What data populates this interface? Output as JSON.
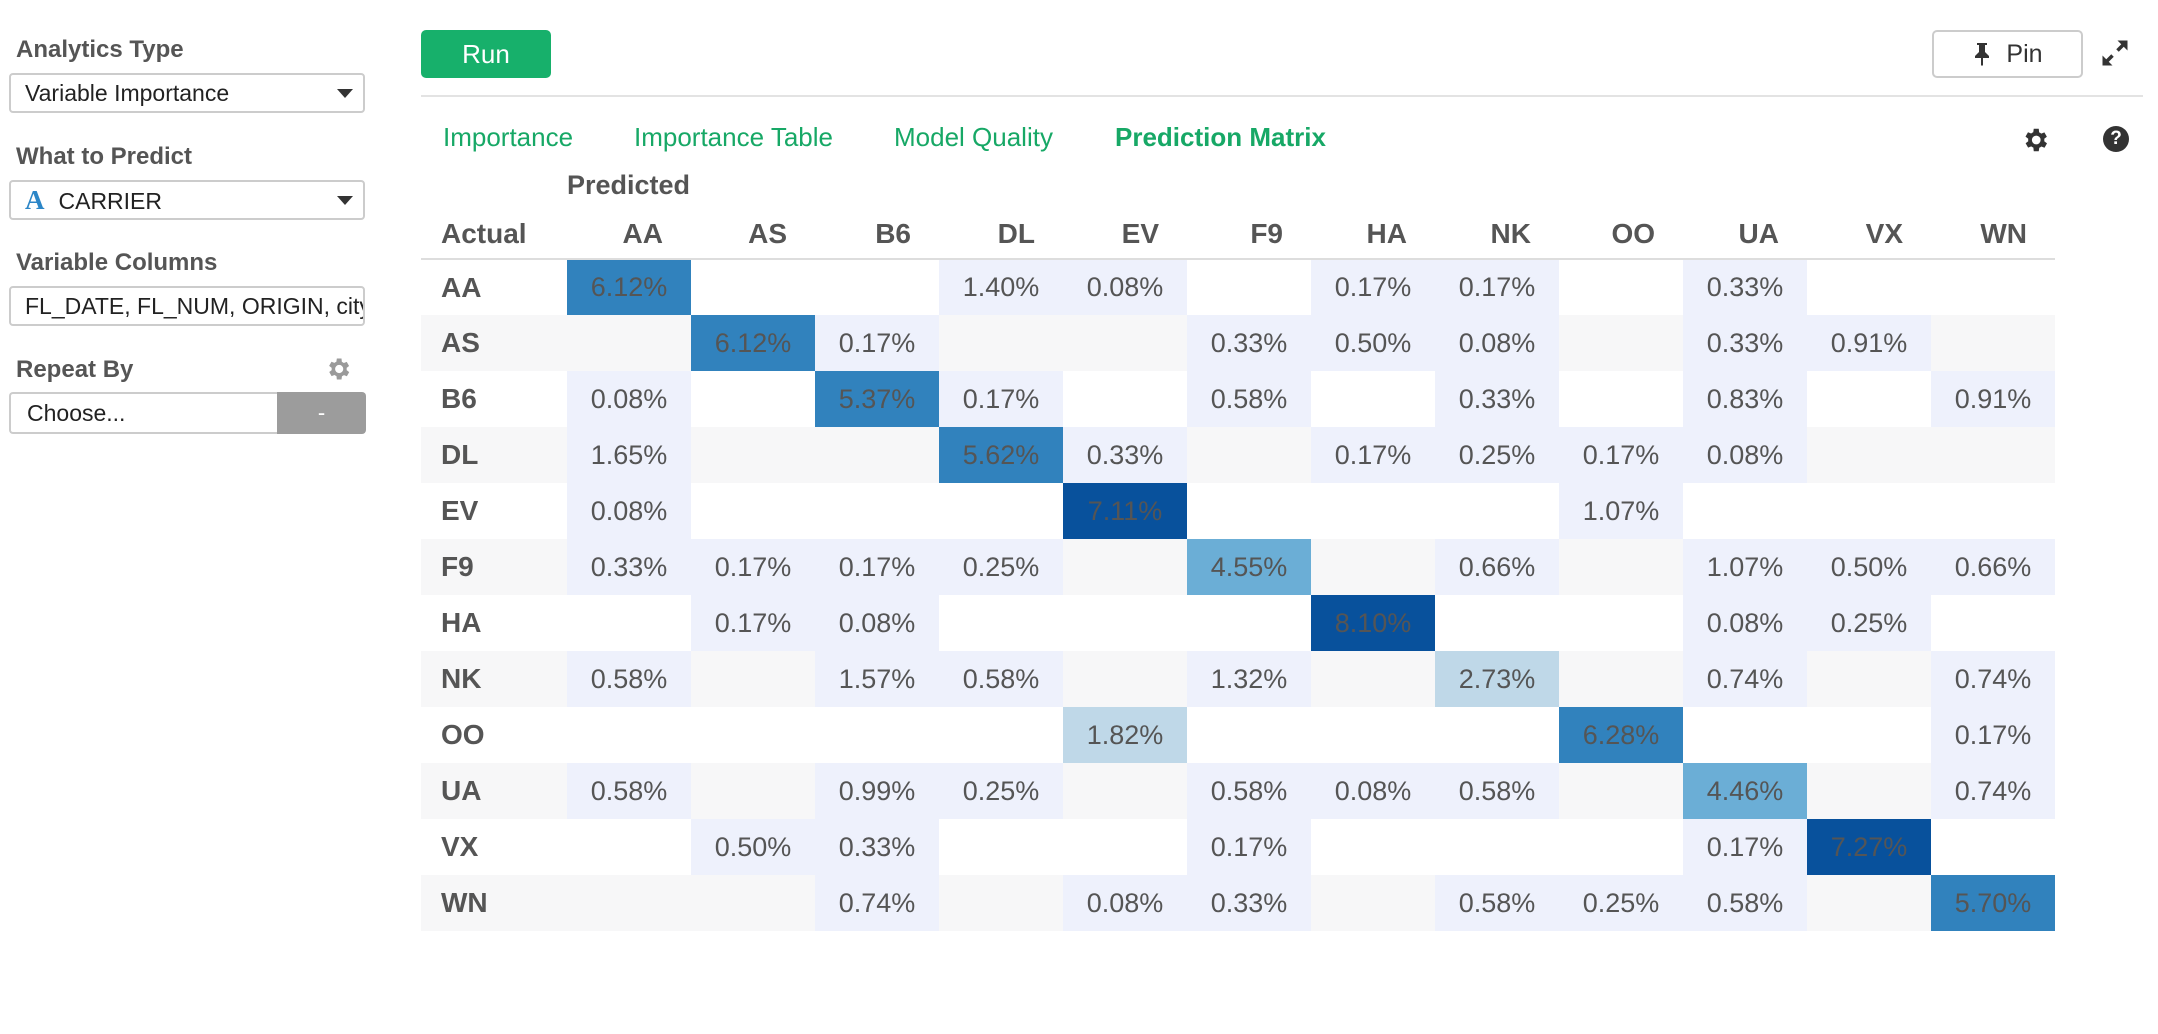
{
  "left_panel": {
    "analytics_type": {
      "label": "Analytics Type",
      "value": "Variable Importance"
    },
    "what_to_predict": {
      "label": "What to Predict",
      "type_icon": "A",
      "value": "CARRIER"
    },
    "variable_columns": {
      "label": "Variable Columns",
      "value": "FL_DATE, FL_NUM, ORIGIN, city"
    },
    "repeat_by": {
      "label": "Repeat By",
      "placeholder": "Choose...",
      "button_label": "-"
    }
  },
  "toolbar": {
    "run_label": "Run",
    "pin_label": "Pin"
  },
  "tabs": [
    {
      "label": "Importance",
      "active": false
    },
    {
      "label": "Importance Table",
      "active": false
    },
    {
      "label": "Model Quality",
      "active": false
    },
    {
      "label": "Prediction Matrix",
      "active": true
    }
  ],
  "matrix": {
    "predicted_label": "Predicted",
    "actual_label": "Actual",
    "columns": [
      "AA",
      "AS",
      "B6",
      "DL",
      "EV",
      "F9",
      "HA",
      "NK",
      "OO",
      "UA",
      "VX",
      "WN"
    ],
    "rows": [
      {
        "label": "AA",
        "cells": [
          "6.12%",
          "",
          "",
          "1.40%",
          "0.08%",
          "",
          "0.17%",
          "0.17%",
          "",
          "0.33%",
          "",
          ""
        ]
      },
      {
        "label": "AS",
        "cells": [
          "",
          "6.12%",
          "0.17%",
          "",
          "",
          "0.33%",
          "0.50%",
          "0.08%",
          "",
          "0.33%",
          "0.91%",
          ""
        ]
      },
      {
        "label": "B6",
        "cells": [
          "0.08%",
          "",
          "5.37%",
          "0.17%",
          "",
          "0.58%",
          "",
          "0.33%",
          "",
          "0.83%",
          "",
          "0.91%"
        ]
      },
      {
        "label": "DL",
        "cells": [
          "1.65%",
          "",
          "",
          "5.62%",
          "0.33%",
          "",
          "0.17%",
          "0.25%",
          "0.17%",
          "0.08%",
          "",
          ""
        ]
      },
      {
        "label": "EV",
        "cells": [
          "0.08%",
          "",
          "",
          "",
          "7.11%",
          "",
          "",
          "",
          "1.07%",
          "",
          "",
          ""
        ]
      },
      {
        "label": "F9",
        "cells": [
          "0.33%",
          "0.17%",
          "0.17%",
          "0.25%",
          "",
          "4.55%",
          "",
          "0.66%",
          "",
          "1.07%",
          "0.50%",
          "0.66%"
        ]
      },
      {
        "label": "HA",
        "cells": [
          "",
          "0.17%",
          "0.08%",
          "",
          "",
          "",
          "8.10%",
          "",
          "",
          "0.08%",
          "0.25%",
          ""
        ]
      },
      {
        "label": "NK",
        "cells": [
          "0.58%",
          "",
          "1.57%",
          "0.58%",
          "",
          "1.32%",
          "",
          "2.73%",
          "",
          "0.74%",
          "",
          "0.74%"
        ]
      },
      {
        "label": "OO",
        "cells": [
          "",
          "",
          "",
          "",
          "1.82%",
          "",
          "",
          "",
          "6.28%",
          "",
          "",
          "0.17%"
        ]
      },
      {
        "label": "UA",
        "cells": [
          "0.58%",
          "",
          "0.99%",
          "0.25%",
          "",
          "0.58%",
          "0.08%",
          "0.58%",
          "",
          "4.46%",
          "",
          "0.74%"
        ]
      },
      {
        "label": "VX",
        "cells": [
          "",
          "0.50%",
          "0.33%",
          "",
          "",
          "0.17%",
          "",
          "",
          "",
          "0.17%",
          "7.27%",
          ""
        ]
      },
      {
        "label": "WN",
        "cells": [
          "",
          "",
          "0.74%",
          "",
          "0.08%",
          "0.33%",
          "",
          "0.58%",
          "0.25%",
          "0.58%",
          "",
          "5.70%"
        ]
      }
    ]
  },
  "colors": {
    "accent_green": "#17b06b",
    "heat_scale": [
      "#eef1fc",
      "#bfd8e8",
      "#6baed6",
      "#3182bd",
      "#08519c"
    ]
  }
}
